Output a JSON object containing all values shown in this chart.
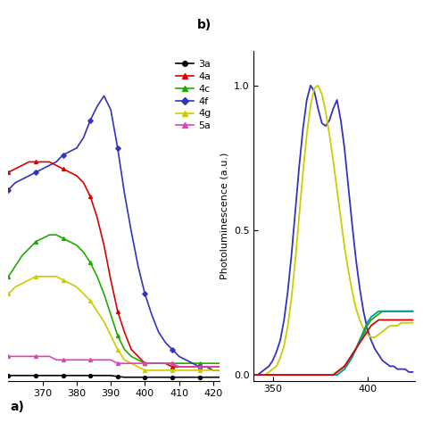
{
  "panel_a": {
    "xlim": [
      360,
      422
    ],
    "ylim": [
      0.0,
      0.95
    ],
    "xticks": [
      370,
      380,
      390,
      400,
      410,
      420
    ],
    "label": "a)",
    "curves": {
      "3a": {
        "color": "black",
        "marker": "o",
        "x": [
          360,
          362,
          364,
          366,
          368,
          370,
          372,
          374,
          376,
          378,
          380,
          382,
          384,
          386,
          388,
          390,
          392,
          394,
          396,
          398,
          400,
          402,
          404,
          406,
          408,
          410,
          412,
          414,
          416,
          418,
          420,
          422
        ],
        "y": [
          0.015,
          0.015,
          0.015,
          0.015,
          0.015,
          0.015,
          0.015,
          0.015,
          0.015,
          0.015,
          0.015,
          0.015,
          0.015,
          0.015,
          0.015,
          0.015,
          0.012,
          0.01,
          0.01,
          0.01,
          0.01,
          0.01,
          0.01,
          0.01,
          0.01,
          0.01,
          0.01,
          0.01,
          0.01,
          0.01,
          0.01,
          0.01
        ]
      },
      "4a": {
        "color": "#dd0000",
        "marker": "^",
        "x": [
          360,
          362,
          364,
          366,
          368,
          370,
          372,
          374,
          376,
          378,
          380,
          382,
          384,
          386,
          388,
          390,
          392,
          394,
          396,
          398,
          400,
          402,
          404,
          406,
          408,
          410,
          412,
          414,
          416,
          418,
          420,
          422
        ],
        "y": [
          0.6,
          0.61,
          0.62,
          0.63,
          0.63,
          0.63,
          0.63,
          0.62,
          0.61,
          0.6,
          0.59,
          0.57,
          0.53,
          0.47,
          0.39,
          0.29,
          0.2,
          0.14,
          0.09,
          0.07,
          0.05,
          0.05,
          0.05,
          0.05,
          0.04,
          0.04,
          0.04,
          0.04,
          0.04,
          0.04,
          0.04,
          0.04
        ]
      },
      "4c": {
        "color": "#22aa00",
        "marker": "^",
        "x": [
          360,
          362,
          364,
          366,
          368,
          370,
          372,
          374,
          376,
          378,
          380,
          382,
          384,
          386,
          388,
          390,
          392,
          394,
          396,
          398,
          400,
          402,
          404,
          406,
          408,
          410,
          412,
          414,
          416,
          418,
          420,
          422
        ],
        "y": [
          0.3,
          0.33,
          0.36,
          0.38,
          0.4,
          0.41,
          0.42,
          0.42,
          0.41,
          0.4,
          0.39,
          0.37,
          0.34,
          0.3,
          0.25,
          0.19,
          0.13,
          0.09,
          0.07,
          0.06,
          0.05,
          0.05,
          0.05,
          0.05,
          0.05,
          0.05,
          0.05,
          0.05,
          0.05,
          0.05,
          0.05,
          0.05
        ]
      },
      "4f": {
        "color": "#3333bb",
        "marker": "D",
        "x": [
          360,
          362,
          364,
          366,
          368,
          370,
          372,
          374,
          376,
          378,
          380,
          382,
          384,
          386,
          388,
          390,
          392,
          394,
          396,
          398,
          400,
          402,
          404,
          406,
          408,
          410,
          412,
          414,
          416,
          418,
          420,
          422
        ],
        "y": [
          0.55,
          0.57,
          0.58,
          0.59,
          0.6,
          0.61,
          0.62,
          0.63,
          0.65,
          0.66,
          0.67,
          0.7,
          0.75,
          0.79,
          0.82,
          0.78,
          0.67,
          0.54,
          0.43,
          0.33,
          0.25,
          0.19,
          0.14,
          0.11,
          0.09,
          0.07,
          0.06,
          0.05,
          0.04,
          0.04,
          0.03,
          0.03
        ]
      },
      "4g": {
        "color": "#cccc00",
        "marker": "^",
        "x": [
          360,
          362,
          364,
          366,
          368,
          370,
          372,
          374,
          376,
          378,
          380,
          382,
          384,
          386,
          388,
          390,
          392,
          394,
          396,
          398,
          400,
          402,
          404,
          406,
          408,
          410,
          412,
          414,
          416,
          418,
          420,
          422
        ],
        "y": [
          0.25,
          0.27,
          0.28,
          0.29,
          0.3,
          0.3,
          0.3,
          0.3,
          0.29,
          0.28,
          0.27,
          0.25,
          0.23,
          0.2,
          0.17,
          0.13,
          0.09,
          0.06,
          0.05,
          0.04,
          0.03,
          0.03,
          0.03,
          0.03,
          0.03,
          0.03,
          0.03,
          0.03,
          0.03,
          0.03,
          0.03,
          0.03
        ]
      },
      "5a": {
        "color": "#dd44bb",
        "marker": "^",
        "x": [
          360,
          362,
          364,
          366,
          368,
          370,
          372,
          374,
          376,
          378,
          380,
          382,
          384,
          386,
          388,
          390,
          392,
          394,
          396,
          398,
          400,
          402,
          404,
          406,
          408,
          410,
          412,
          414,
          416,
          418,
          420,
          422
        ],
        "y": [
          0.07,
          0.07,
          0.07,
          0.07,
          0.07,
          0.07,
          0.07,
          0.06,
          0.06,
          0.06,
          0.06,
          0.06,
          0.06,
          0.06,
          0.06,
          0.06,
          0.05,
          0.05,
          0.05,
          0.05,
          0.05,
          0.05,
          0.05,
          0.05,
          0.05,
          0.04,
          0.04,
          0.04,
          0.04,
          0.04,
          0.04,
          0.04
        ]
      }
    }
  },
  "panel_b": {
    "xlim": [
      340,
      425
    ],
    "ylim": [
      -0.02,
      1.12
    ],
    "xticks": [
      350,
      400
    ],
    "yticks": [
      0.0,
      0.5,
      1.0
    ],
    "ylabel": "Photoluminescence (a.u.)",
    "label": "b)",
    "curves": {
      "4f": {
        "color": "#3333bb",
        "x": [
          340,
          342,
          344,
          346,
          348,
          350,
          352,
          354,
          356,
          358,
          360,
          362,
          364,
          366,
          368,
          370,
          372,
          374,
          376,
          378,
          380,
          382,
          384,
          386,
          388,
          390,
          392,
          394,
          396,
          398,
          400,
          402,
          404,
          406,
          408,
          410,
          412,
          414,
          416,
          418,
          420,
          422,
          424
        ],
        "y": [
          0.0,
          0.0,
          0.01,
          0.02,
          0.03,
          0.05,
          0.08,
          0.12,
          0.19,
          0.29,
          0.42,
          0.57,
          0.72,
          0.85,
          0.95,
          1.0,
          0.98,
          0.92,
          0.87,
          0.86,
          0.88,
          0.92,
          0.95,
          0.88,
          0.78,
          0.65,
          0.52,
          0.4,
          0.3,
          0.22,
          0.16,
          0.12,
          0.09,
          0.07,
          0.05,
          0.04,
          0.03,
          0.03,
          0.02,
          0.02,
          0.02,
          0.01,
          0.01
        ]
      },
      "4g": {
        "color": "#cccc00",
        "x": [
          340,
          342,
          344,
          346,
          348,
          350,
          352,
          354,
          356,
          358,
          360,
          362,
          364,
          366,
          368,
          370,
          372,
          374,
          376,
          378,
          380,
          382,
          384,
          386,
          388,
          390,
          392,
          394,
          396,
          398,
          400,
          402,
          404,
          406,
          408,
          410,
          412,
          414,
          416,
          418,
          420,
          422,
          424
        ],
        "y": [
          0.0,
          0.0,
          0.0,
          0.0,
          0.01,
          0.02,
          0.03,
          0.06,
          0.1,
          0.17,
          0.27,
          0.4,
          0.55,
          0.7,
          0.83,
          0.93,
          0.99,
          1.0,
          0.97,
          0.91,
          0.83,
          0.74,
          0.64,
          0.54,
          0.44,
          0.36,
          0.29,
          0.23,
          0.19,
          0.16,
          0.14,
          0.13,
          0.13,
          0.14,
          0.15,
          0.16,
          0.17,
          0.17,
          0.17,
          0.18,
          0.18,
          0.18,
          0.18
        ]
      },
      "4c": {
        "color": "#22aa00",
        "x": [
          340,
          342,
          344,
          346,
          348,
          350,
          352,
          354,
          356,
          358,
          360,
          362,
          364,
          366,
          368,
          370,
          372,
          374,
          376,
          378,
          380,
          382,
          384,
          386,
          388,
          390,
          392,
          394,
          396,
          398,
          400,
          402,
          404,
          406,
          408,
          410,
          412,
          414,
          416,
          418,
          420,
          422,
          424
        ],
        "y": [
          0.0,
          0.0,
          0.0,
          0.0,
          0.0,
          0.0,
          0.0,
          0.0,
          0.0,
          0.0,
          0.0,
          0.0,
          0.0,
          0.0,
          0.0,
          0.0,
          0.0,
          0.0,
          0.0,
          0.0,
          0.0,
          0.0,
          0.01,
          0.02,
          0.03,
          0.05,
          0.07,
          0.09,
          0.12,
          0.14,
          0.17,
          0.19,
          0.2,
          0.21,
          0.22,
          0.22,
          0.22,
          0.22,
          0.22,
          0.22,
          0.22,
          0.22,
          0.22
        ]
      },
      "3a": {
        "color": "#009999",
        "x": [
          340,
          342,
          344,
          346,
          348,
          350,
          352,
          354,
          356,
          358,
          360,
          362,
          364,
          366,
          368,
          370,
          372,
          374,
          376,
          378,
          380,
          382,
          384,
          386,
          388,
          390,
          392,
          394,
          396,
          398,
          400,
          402,
          404,
          406,
          408,
          410,
          412,
          414,
          416,
          418,
          420,
          422,
          424
        ],
        "y": [
          0.0,
          0.0,
          0.0,
          0.0,
          0.0,
          0.0,
          0.0,
          0.0,
          0.0,
          0.0,
          0.0,
          0.0,
          0.0,
          0.0,
          0.0,
          0.0,
          0.0,
          0.0,
          0.0,
          0.0,
          0.0,
          0.0,
          0.0,
          0.01,
          0.02,
          0.04,
          0.06,
          0.09,
          0.12,
          0.15,
          0.18,
          0.2,
          0.21,
          0.22,
          0.22,
          0.22,
          0.22,
          0.22,
          0.22,
          0.22,
          0.22,
          0.22,
          0.22
        ]
      },
      "4a": {
        "color": "#dd0000",
        "x": [
          340,
          342,
          344,
          346,
          348,
          350,
          352,
          354,
          356,
          358,
          360,
          362,
          364,
          366,
          368,
          370,
          372,
          374,
          376,
          378,
          380,
          382,
          384,
          386,
          388,
          390,
          392,
          394,
          396,
          398,
          400,
          402,
          404,
          406,
          408,
          410,
          412,
          414,
          416,
          418,
          420,
          422,
          424
        ],
        "y": [
          0.0,
          0.0,
          0.0,
          0.0,
          0.0,
          0.0,
          0.0,
          0.0,
          0.0,
          0.0,
          0.0,
          0.0,
          0.0,
          0.0,
          0.0,
          0.0,
          0.0,
          0.0,
          0.0,
          0.0,
          0.0,
          0.0,
          0.01,
          0.02,
          0.03,
          0.05,
          0.07,
          0.09,
          0.11,
          0.13,
          0.15,
          0.17,
          0.18,
          0.19,
          0.19,
          0.19,
          0.19,
          0.19,
          0.19,
          0.19,
          0.19,
          0.19,
          0.19
        ]
      }
    }
  },
  "bg_color": "#ffffff",
  "legend_order": [
    "3a",
    "4a",
    "4c",
    "4f",
    "4g",
    "5a"
  ]
}
